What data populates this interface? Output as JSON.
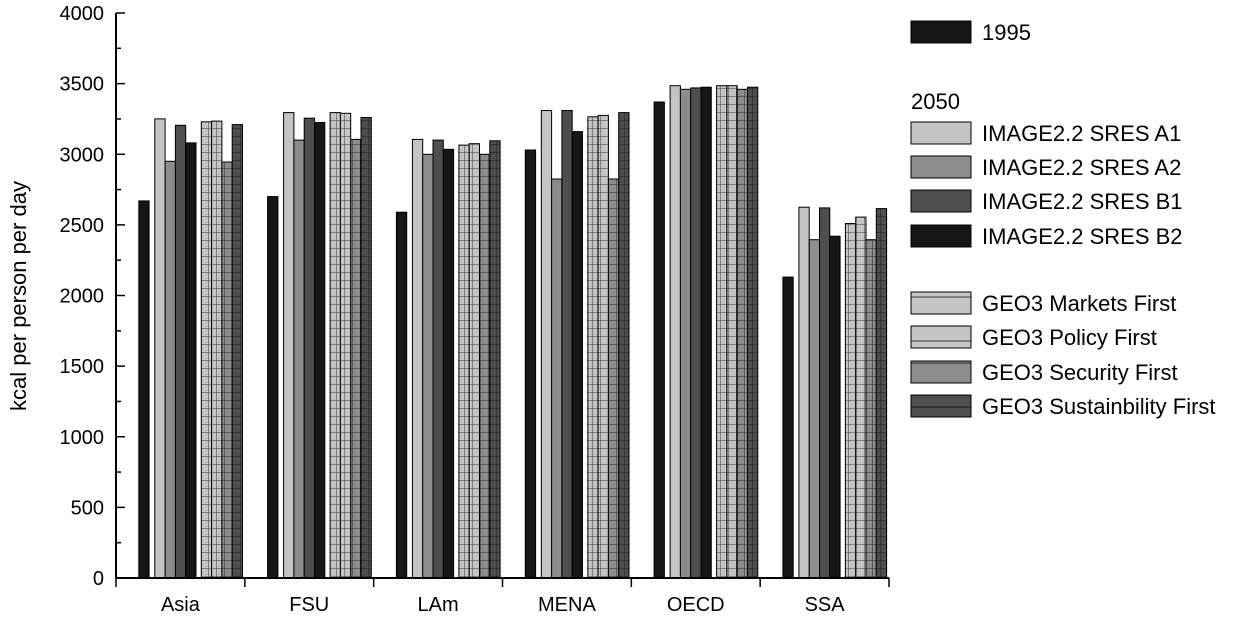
{
  "chart_data": {
    "type": "bar",
    "title": "",
    "xlabel": "",
    "ylabel": "kcal per person per day",
    "ylim": [
      0,
      4000
    ],
    "yticks": [
      0,
      500,
      1000,
      1500,
      2000,
      2500,
      3000,
      3500,
      4000
    ],
    "grid": false,
    "legend_position": "right",
    "categories": [
      "Asia",
      "FSU",
      "LAm",
      "MENA",
      "OECD",
      "SSA"
    ],
    "legend_groups": [
      "",
      "2050",
      ""
    ],
    "series": [
      {
        "name": "1995",
        "group": 0,
        "pattern": "solid",
        "color": "#161616",
        "values": [
          2670,
          2700,
          2590,
          3030,
          3370,
          2130
        ]
      },
      {
        "name": "IMAGE2.2 SRES A1",
        "group": 1,
        "pattern": "solid",
        "color": "#c4c4c4",
        "values": [
          3250,
          3295,
          3105,
          3310,
          3485,
          2625
        ]
      },
      {
        "name": "IMAGE2.2 SRES A2",
        "group": 1,
        "pattern": "solid",
        "color": "#8c8c8c",
        "values": [
          2950,
          3100,
          3000,
          2825,
          3460,
          2395
        ]
      },
      {
        "name": "IMAGE2.2 SRES B1",
        "group": 1,
        "pattern": "solid",
        "color": "#4e4e4e",
        "values": [
          3205,
          3255,
          3100,
          3310,
          3470,
          2620
        ]
      },
      {
        "name": "IMAGE2.2 SRES B2",
        "group": 1,
        "pattern": "solid",
        "color": "#161616",
        "values": [
          3080,
          3225,
          3035,
          3160,
          3475,
          2420
        ]
      },
      {
        "name": "GEO3 Markets First",
        "group": 2,
        "pattern": "grid",
        "color": "#c4c4c4",
        "values": [
          3230,
          3295,
          3065,
          3265,
          3485,
          2510
        ]
      },
      {
        "name": "GEO3 Policy First",
        "group": 2,
        "pattern": "grid",
        "color": "#c4c4c4",
        "values": [
          3235,
          3290,
          3075,
          3275,
          3485,
          2555
        ]
      },
      {
        "name": "GEO3 Security First",
        "group": 2,
        "pattern": "grid",
        "color": "#8c8c8c",
        "values": [
          2945,
          3105,
          3000,
          2825,
          3460,
          2395
        ]
      },
      {
        "name": "GEO3 Sustainbility First",
        "group": 2,
        "pattern": "grid",
        "color": "#4e4e4e",
        "values": [
          3210,
          3260,
          3095,
          3295,
          3475,
          2615
        ]
      }
    ]
  }
}
